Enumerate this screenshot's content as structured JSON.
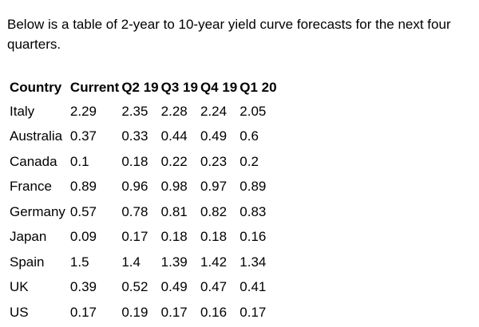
{
  "intro_text": "Below is a table of 2-year to 10-year yield curve forecasts for the next four quarters.",
  "table": {
    "headers": [
      "Country",
      "Current",
      "Q2 19",
      "Q3 19",
      "Q4 19",
      "Q1 20"
    ],
    "rows": [
      [
        "Italy",
        "2.29",
        "2.35",
        "2.28",
        "2.24",
        "2.05"
      ],
      [
        "Australia",
        "0.37",
        "0.33",
        "0.44",
        "0.49",
        "0.6"
      ],
      [
        "Canada",
        "0.1",
        "0.18",
        "0.22",
        "0.23",
        "0.2"
      ],
      [
        "France",
        "0.89",
        "0.96",
        "0.98",
        "0.97",
        "0.89"
      ],
      [
        "Germany",
        "0.57",
        "0.78",
        "0.81",
        "0.82",
        "0.83"
      ],
      [
        "Japan",
        "0.09",
        "0.17",
        "0.18",
        "0.18",
        "0.16"
      ],
      [
        "Spain",
        "1.5",
        "1.4",
        "1.39",
        "1.42",
        "1.34"
      ],
      [
        "UK",
        "0.39",
        "0.52",
        "0.49",
        "0.47",
        "0.41"
      ],
      [
        "US",
        "0.17",
        "0.19",
        "0.17",
        "0.16",
        "0.17"
      ]
    ]
  }
}
